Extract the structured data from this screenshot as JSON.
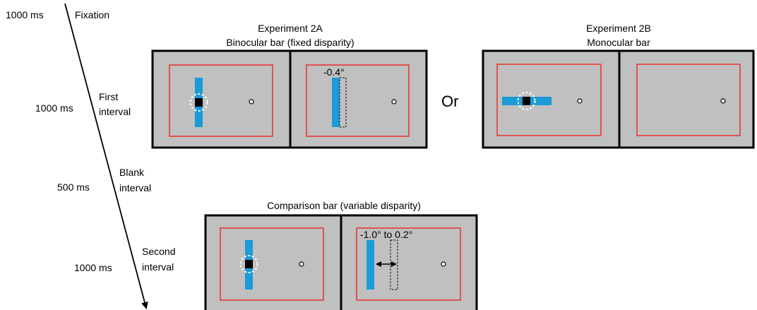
{
  "timeline": {
    "fixation_time": "1000 ms",
    "fixation_label": "Fixation",
    "first_time": "1000 ms",
    "first_label_1": "First",
    "first_label_2": "interval",
    "blank_time": "500 ms",
    "blank_label_1": "Blank",
    "blank_label_2": "interval",
    "second_time": "1000 ms",
    "second_label_1": "Second",
    "second_label_2": "interval"
  },
  "exp2a": {
    "title": "Experiment 2A",
    "subtitle": "Binocular bar (fixed disparity)",
    "disparity": "-0.4°"
  },
  "or_label": "Or",
  "exp2b": {
    "title": "Experiment 2B",
    "subtitle": "Monocular bar"
  },
  "comparison": {
    "title": "Comparison bar (variable disparity)",
    "disparity_range": "-1.0° to 0.2°"
  },
  "colors": {
    "screen": "#c0c0c0",
    "frame": "#e8312c",
    "bar": "#1b9bd7",
    "square": "#000000"
  }
}
